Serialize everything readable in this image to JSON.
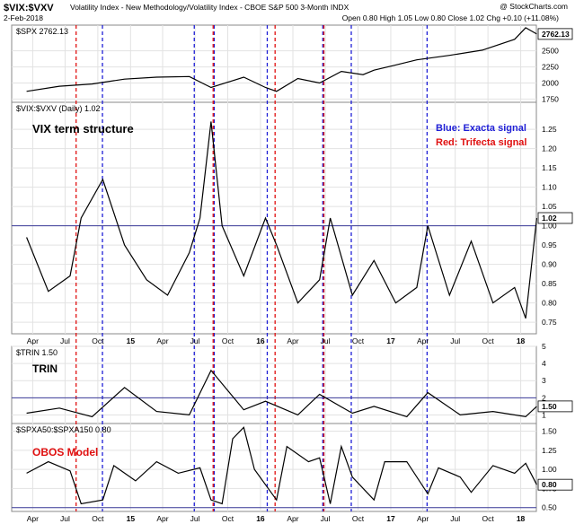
{
  "header": {
    "symbol": "$VIX:$VXV",
    "description": "Volatility Index - New Methodology/Volatility Index - CBOE S&P 500 3-Month INDX",
    "watermark": "@ StockCharts.com",
    "date": "2-Feb-2018",
    "quote": "Open 0.80  High 1.05  Low 0.80  Close 1.02  Chg +0.10 (+11.08%)"
  },
  "annotations": {
    "vix_title": "VIX term structure",
    "blue_legend": "Blue: Exacta signal",
    "red_legend": "Red: Trifecta signal",
    "trin_title": "TRIN",
    "obos_title": "OBOS Model"
  },
  "colors": {
    "blue_signal": "#1f1fd6",
    "red_signal": "#e01010",
    "price_line": "#000000",
    "ref_line": "#3b3b9a",
    "label_box": "#ffffff"
  },
  "chart_data": [
    {
      "type": "line",
      "panel": "spx",
      "title": "$SPX 2762.13",
      "last_value_label": "2762.13",
      "y_ticks": [
        "2500",
        "2250",
        "2000",
        "1750"
      ],
      "ylim": [
        1700,
        2900
      ],
      "x": [
        "2014-03",
        "2014-06",
        "2014-09",
        "2014-12",
        "2015-03",
        "2015-06",
        "2015-08",
        "2015-11",
        "2016-01",
        "2016-02",
        "2016-04",
        "2016-06",
        "2016-08",
        "2016-10",
        "2016-11",
        "2017-01",
        "2017-03",
        "2017-06",
        "2017-09",
        "2017-12",
        "2018-01",
        "2018-02"
      ],
      "values": [
        1870,
        1950,
        1985,
        2060,
        2090,
        2100,
        1930,
        2090,
        1930,
        1870,
        2070,
        2000,
        2180,
        2130,
        2200,
        2280,
        2360,
        2430,
        2510,
        2680,
        2860,
        2762
      ]
    },
    {
      "type": "line",
      "panel": "vix_vxv",
      "title": "$VIX:$VXV (Daily) 1.02",
      "last_value_label": "1.02",
      "y_ticks": [
        "1.25",
        "1.20",
        "1.15",
        "1.10",
        "1.05",
        "1.00",
        "0.95",
        "0.90",
        "0.85",
        "0.80",
        "0.75"
      ],
      "ylim": [
        0.72,
        1.32
      ],
      "reference_line": 1.0,
      "x": [
        "2014-03",
        "2014-05",
        "2014-07",
        "2014-08",
        "2014-10",
        "2014-12",
        "2015-02",
        "2015-04",
        "2015-06",
        "2015-07",
        "2015-08",
        "2015-09",
        "2015-11",
        "2016-01",
        "2016-02",
        "2016-04",
        "2016-06",
        "2016-07",
        "2016-09",
        "2016-11",
        "2017-01",
        "2017-03",
        "2017-04",
        "2017-06",
        "2017-08",
        "2017-10",
        "2017-12",
        "2018-01",
        "2018-02"
      ],
      "values": [
        0.97,
        0.83,
        0.87,
        1.02,
        1.12,
        0.95,
        0.86,
        0.82,
        0.93,
        1.02,
        1.27,
        1.0,
        0.87,
        1.02,
        0.95,
        0.8,
        0.86,
        1.02,
        0.82,
        0.91,
        0.8,
        0.84,
        1.0,
        0.82,
        0.96,
        0.8,
        0.84,
        0.76,
        1.02
      ]
    },
    {
      "type": "line",
      "panel": "trin",
      "title": "$TRIN 1.50",
      "last_value_label": "1.50",
      "y_ticks": [
        "5",
        "4",
        "3",
        "2",
        "1"
      ],
      "ylim": [
        0.5,
        5
      ],
      "reference_line": 2.0,
      "x": [
        "2014-03",
        "2014-06",
        "2014-09",
        "2014-12",
        "2015-03",
        "2015-06",
        "2015-08",
        "2015-11",
        "2016-01",
        "2016-04",
        "2016-06",
        "2016-09",
        "2016-11",
        "2017-02",
        "2017-04",
        "2017-07",
        "2017-10",
        "2018-01",
        "2018-02"
      ],
      "values": [
        1.1,
        1.4,
        0.9,
        2.6,
        1.2,
        1.0,
        3.6,
        1.3,
        1.8,
        1.0,
        2.2,
        1.1,
        1.5,
        0.9,
        2.3,
        1.0,
        1.2,
        0.9,
        1.5
      ]
    },
    {
      "type": "line",
      "panel": "obos",
      "title": "$SPXA50:$SPXA150 0.80",
      "last_value_label": "0.80",
      "y_ticks": [
        "1.50",
        "1.25",
        "1.00",
        "0.75",
        "0.50"
      ],
      "ylim": [
        0.45,
        1.6
      ],
      "reference_line": 0.5,
      "x_ticks": [
        "Apr",
        "Jul",
        "Oct",
        "15",
        "Apr",
        "Jul",
        "Oct",
        "16",
        "Apr",
        "Jul",
        "Oct",
        "17",
        "Apr",
        "Jul",
        "Oct",
        "18"
      ],
      "x": [
        "2014-03",
        "2014-05",
        "2014-07",
        "2014-08",
        "2014-10",
        "2014-11",
        "2015-01",
        "2015-03",
        "2015-05",
        "2015-07",
        "2015-08",
        "2015-09",
        "2015-10",
        "2015-11",
        "2015-12",
        "2016-01",
        "2016-02",
        "2016-03",
        "2016-05",
        "2016-06",
        "2016-07",
        "2016-08",
        "2016-09",
        "2016-11",
        "2016-12",
        "2017-02",
        "2017-04",
        "2017-05",
        "2017-07",
        "2017-08",
        "2017-10",
        "2017-12",
        "2018-01",
        "2018-02"
      ],
      "values": [
        0.95,
        1.1,
        0.98,
        0.55,
        0.6,
        1.05,
        0.85,
        1.1,
        0.95,
        1.02,
        0.6,
        0.55,
        1.4,
        1.55,
        1.0,
        0.8,
        0.6,
        1.3,
        1.1,
        1.15,
        0.55,
        1.3,
        0.9,
        0.6,
        1.1,
        1.1,
        0.68,
        1.02,
        0.9,
        0.7,
        1.05,
        0.95,
        1.08,
        0.8
      ]
    }
  ]
}
